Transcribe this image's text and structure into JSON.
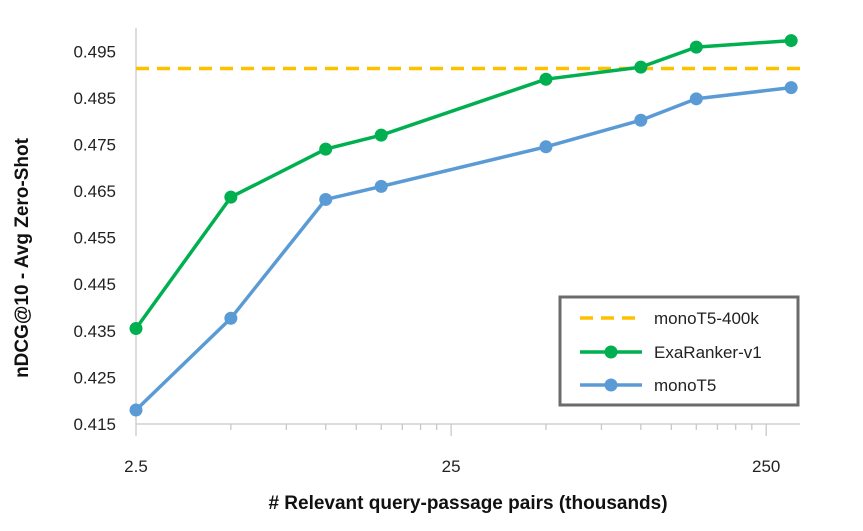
{
  "chart_data": {
    "type": "line",
    "xlabel": "# Relevant query-passage pairs (thousands)",
    "ylabel": "nDCG@10 - Avg Zero-Shot",
    "x_scale": "log",
    "xlim": [
      2.5,
      320
    ],
    "ylim": [
      0.415,
      0.5
    ],
    "xticks": [
      2.5,
      25,
      250
    ],
    "xtick_labels": [
      "2.5",
      "25",
      "250"
    ],
    "yticks": [
      0.415,
      0.425,
      0.435,
      0.445,
      0.455,
      0.465,
      0.475,
      0.485,
      0.495
    ],
    "ytick_labels": [
      "0.415",
      "0.425",
      "0.435",
      "0.445",
      "0.455",
      "0.465",
      "0.475",
      "0.485",
      "0.495"
    ],
    "x": [
      2.5,
      5,
      10,
      15,
      50,
      100,
      150,
      300
    ],
    "series": [
      {
        "name": "ExaRanker-v1",
        "values": [
          0.4355,
          0.4637,
          0.474,
          0.477,
          0.489,
          0.4916,
          0.4959,
          0.4973
        ],
        "color": "#00b050",
        "style": "solid-marker"
      },
      {
        "name": "monoT5",
        "values": [
          0.418,
          0.4377,
          0.4632,
          0.466,
          0.4745,
          0.4802,
          0.4848,
          0.4872
        ],
        "color": "#5b9bd5",
        "style": "solid-marker"
      }
    ],
    "reference_line": {
      "name": "monoT5-400k",
      "value": 0.4913,
      "color": "#ffc000",
      "style": "dashed"
    },
    "legend_position": "bottom-right",
    "legend_entries": [
      "monoT5-400k",
      "ExaRanker-v1",
      "monoT5"
    ],
    "grid": false
  }
}
